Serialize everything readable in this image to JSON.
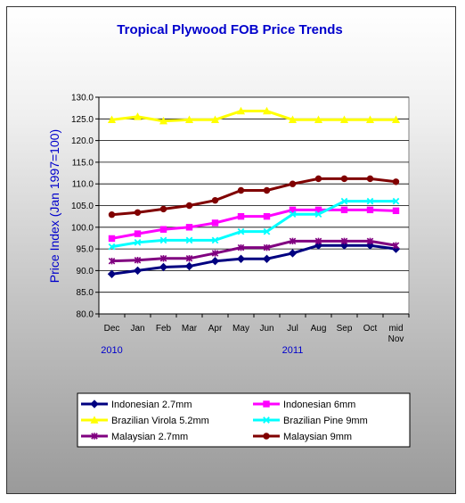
{
  "chart_data": {
    "type": "line",
    "title": "Tropical Plywood FOB Price Trends",
    "ylabel": "Price Index (Jan 1997=100)",
    "xlabel": "",
    "categories": [
      [
        "Dec"
      ],
      [
        "Jan"
      ],
      [
        "Feb"
      ],
      [
        "Mar"
      ],
      [
        "Apr"
      ],
      [
        "May"
      ],
      [
        "Jun"
      ],
      [
        "Jul"
      ],
      [
        "Aug"
      ],
      [
        "Sep"
      ],
      [
        "Oct"
      ],
      [
        "mid",
        "Nov"
      ]
    ],
    "year_labels": [
      {
        "text": "2010",
        "category_index": 0
      },
      {
        "text": "2011",
        "category_index": 7
      }
    ],
    "ylim": [
      80,
      130
    ],
    "yticks": [
      "80.0",
      "85.0",
      "90.0",
      "95.0",
      "100.0",
      "105.0",
      "110.0",
      "115.0",
      "120.0",
      "125.0",
      "130.0"
    ],
    "ytick_values": [
      80,
      85,
      90,
      95,
      100,
      105,
      110,
      115,
      120,
      125,
      130
    ],
    "grid": true,
    "legend_position": "bottom",
    "series": [
      {
        "name": "Indonesian 2.7mm",
        "color": "#000080",
        "marker": "diamond",
        "values": [
          89.2,
          90.0,
          90.8,
          91.0,
          92.2,
          92.7,
          92.7,
          94.0,
          95.8,
          95.8,
          95.8,
          95.0
        ]
      },
      {
        "name": "Indonesian 6mm",
        "color": "#ff00ff",
        "marker": "square",
        "values": [
          97.4,
          98.5,
          99.5,
          100.0,
          101.0,
          102.5,
          102.5,
          104.0,
          104.0,
          104.0,
          104.0,
          103.8
        ]
      },
      {
        "name": "Brazilian Virola 5.2mm",
        "color": "#ffff00",
        "marker": "triangle",
        "values": [
          124.8,
          125.5,
          124.5,
          124.8,
          124.8,
          126.8,
          126.8,
          124.8,
          124.8,
          124.8,
          124.8,
          124.8
        ]
      },
      {
        "name": "Brazilian Pine 9mm",
        "color": "#00ffff",
        "marker": "x",
        "values": [
          95.5,
          96.5,
          97.0,
          97.0,
          97.0,
          99.0,
          99.0,
          103.0,
          103.0,
          106.0,
          106.0,
          106.0
        ]
      },
      {
        "name": "Malaysian 2.7mm",
        "color": "#800080",
        "marker": "star",
        "values": [
          92.2,
          92.4,
          92.8,
          92.8,
          94.0,
          95.3,
          95.3,
          96.8,
          96.8,
          96.8,
          96.8,
          95.8
        ]
      },
      {
        "name": "Malaysian 9mm",
        "color": "#800000",
        "marker": "circle",
        "values": [
          102.9,
          103.4,
          104.2,
          105.0,
          106.2,
          108.5,
          108.5,
          110.0,
          111.2,
          111.2,
          111.2,
          110.5
        ]
      }
    ]
  },
  "colors": {
    "title": "#0000cc",
    "ylabel": "#0000cc",
    "year_labels": "#0000cc",
    "plot_background": "#ffffff",
    "gridlines": "#000000"
  }
}
